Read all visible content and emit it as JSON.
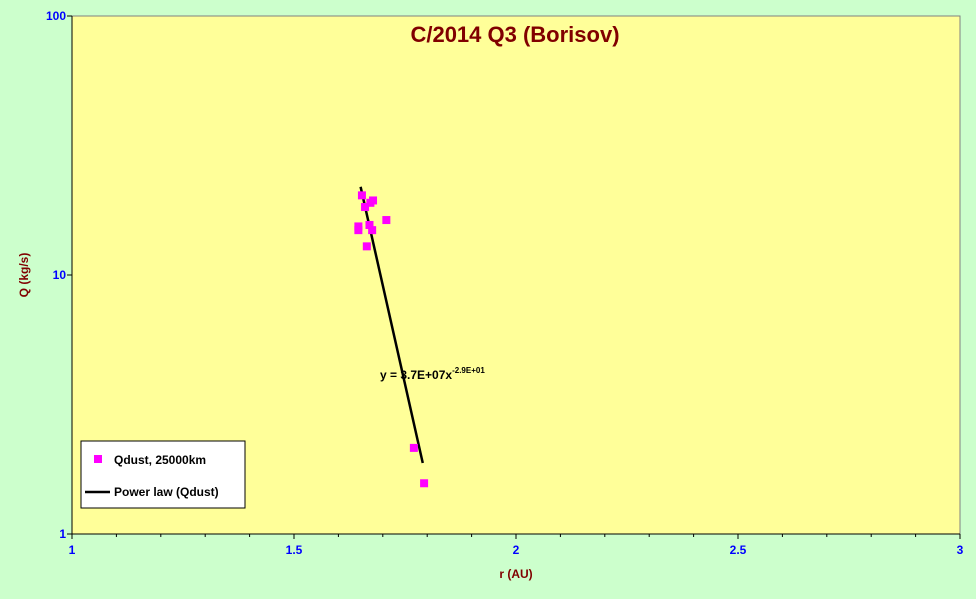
{
  "chart_data": {
    "type": "scatter",
    "title": "C/2014 Q3 (Borisov)",
    "xlabel": "r (AU)",
    "ylabel": "Q (kg/s)",
    "xlim": [
      1,
      3
    ],
    "ylim": [
      1,
      100
    ],
    "yscale": "log",
    "x_ticks": [
      "1",
      "1.5",
      "2",
      "2.5",
      "3"
    ],
    "y_ticks": [
      "100",
      "10",
      "1"
    ],
    "grid": false,
    "legend_position": "bottom-left",
    "series": [
      {
        "name": "Qdust, 25000km",
        "kind": "points",
        "color": "#ff00ff",
        "x": [
          1.653,
          1.66,
          1.672,
          1.678,
          1.645,
          1.645,
          1.67,
          1.676,
          1.664,
          1.708,
          1.77,
          1.793
        ],
        "y": [
          20.3,
          18.3,
          19.0,
          19.4,
          15.4,
          14.9,
          15.6,
          14.9,
          12.9,
          16.3,
          2.15,
          1.57
        ]
      },
      {
        "name": "Power law (Qdust)",
        "kind": "trendline",
        "color": "#000000",
        "x": [
          1.65,
          1.79
        ],
        "y": [
          21.9,
          1.88
        ]
      }
    ],
    "annotation": {
      "prefix": "y = 3.7E+07x",
      "exponent": "-2.9E+01"
    }
  }
}
